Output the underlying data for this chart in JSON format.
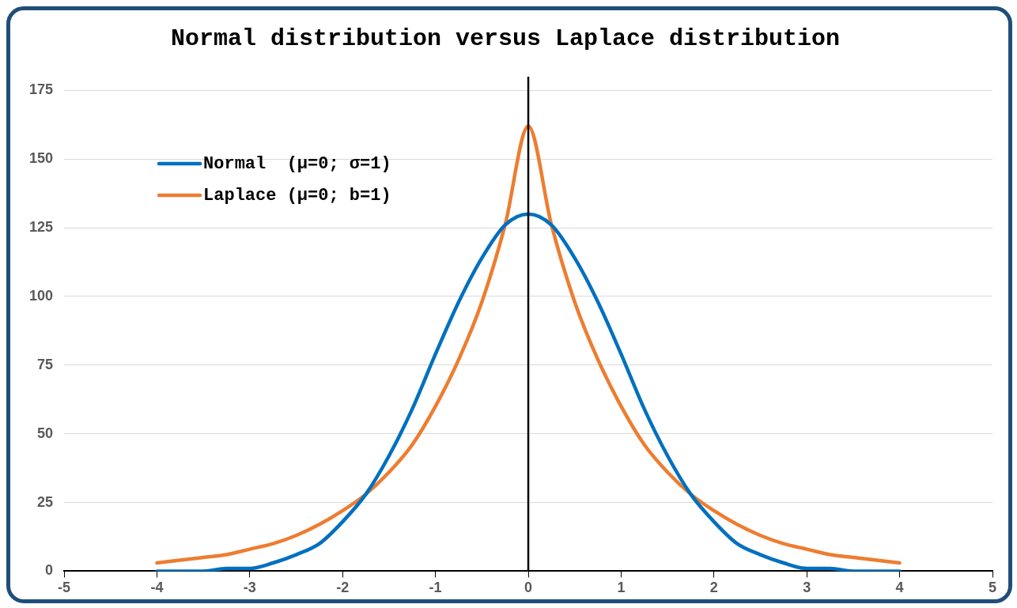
{
  "chart_data": {
    "type": "line",
    "title": "Normal distribution versus Laplace distribution",
    "series": [
      {
        "name": "Normal  (μ=0; σ=1)",
        "color": "#0070c0",
        "x": [
          -4,
          -3.75,
          -3.5,
          -3.25,
          -3,
          -2.75,
          -2.5,
          -2.25,
          -2,
          -1.75,
          -1.5,
          -1.25,
          -1,
          -0.75,
          -0.5,
          -0.25,
          0,
          0.25,
          0.5,
          0.75,
          1,
          1.25,
          1.5,
          1.75,
          2,
          2.25,
          2.5,
          2.75,
          3,
          3.25,
          3.5,
          3.75,
          4
        ],
        "values": [
          0,
          0,
          0,
          1,
          1,
          3,
          6,
          10,
          18,
          28,
          42,
          59,
          79,
          98,
          114,
          126,
          130,
          126,
          114,
          98,
          79,
          59,
          42,
          28,
          18,
          10,
          6,
          3,
          1,
          1,
          0,
          0,
          0
        ]
      },
      {
        "name": "Laplace (μ=0; b=1)",
        "color": "#ed7d31",
        "x": [
          -4,
          -3.75,
          -3.5,
          -3.25,
          -3,
          -2.75,
          -2.5,
          -2.25,
          -2,
          -1.75,
          -1.5,
          -1.25,
          -1,
          -0.75,
          -0.5,
          -0.25,
          0,
          0.25,
          0.5,
          0.75,
          1,
          1.25,
          1.5,
          1.75,
          2,
          2.25,
          2.5,
          2.75,
          3,
          3.25,
          3.5,
          3.75,
          4
        ],
        "values": [
          3,
          4,
          5,
          6,
          8,
          10,
          13,
          17,
          22,
          28,
          36,
          46,
          60,
          77,
          98,
          126,
          162,
          126,
          98,
          77,
          60,
          46,
          36,
          28,
          22,
          17,
          13,
          10,
          8,
          6,
          5,
          4,
          3
        ]
      }
    ],
    "xlim": [
      -5,
      5
    ],
    "xticks": [
      -5,
      -4,
      -3,
      -2,
      -1,
      0,
      1,
      2,
      3,
      4,
      5
    ],
    "ylim": [
      0,
      180
    ],
    "yticks": [
      0,
      25,
      50,
      75,
      100,
      125,
      150,
      175
    ],
    "grid": "y",
    "legend": "top left",
    "marker": "none",
    "line_style": "solid",
    "ref_lines": [
      {
        "axis": "x",
        "value": 0,
        "color": "#000000"
      }
    ]
  }
}
